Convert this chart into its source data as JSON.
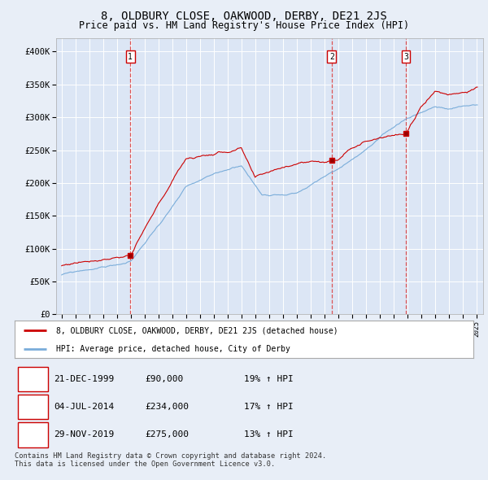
{
  "title": "8, OLDBURY CLOSE, OAKWOOD, DERBY, DE21 2JS",
  "subtitle": "Price paid vs. HM Land Registry's House Price Index (HPI)",
  "background_color": "#e8eef7",
  "plot_bg_color": "#dce6f5",
  "ylim": [
    0,
    420000
  ],
  "yticks": [
    0,
    50000,
    100000,
    150000,
    200000,
    250000,
    300000,
    350000,
    400000
  ],
  "ytick_labels": [
    "£0",
    "£50K",
    "£100K",
    "£150K",
    "£200K",
    "£250K",
    "£300K",
    "£350K",
    "£400K"
  ],
  "xlim_start": 1994.6,
  "xlim_end": 2025.5,
  "sale_dates": [
    1999.97,
    2014.54,
    2019.91
  ],
  "sale_prices": [
    90000,
    234000,
    275000
  ],
  "sale_labels": [
    "1",
    "2",
    "3"
  ],
  "legend_line1": "8, OLDBURY CLOSE, OAKWOOD, DERBY, DE21 2JS (detached house)",
  "legend_line2": "HPI: Average price, detached house, City of Derby",
  "table_data": [
    [
      "1",
      "21-DEC-1999",
      "£90,000",
      "19% ↑ HPI"
    ],
    [
      "2",
      "04-JUL-2014",
      "£234,000",
      "17% ↑ HPI"
    ],
    [
      "3",
      "29-NOV-2019",
      "£275,000",
      "13% ↑ HPI"
    ]
  ],
  "footer": "Contains HM Land Registry data © Crown copyright and database right 2024.\nThis data is licensed under the Open Government Licence v3.0.",
  "red_line_color": "#cc0000",
  "blue_line_color": "#7aadda",
  "dashed_line_color": "#dd4444",
  "grid_color": "#ffffff",
  "title_fontsize": 10,
  "subtitle_fontsize": 8.5,
  "axis_fontsize": 7.5
}
